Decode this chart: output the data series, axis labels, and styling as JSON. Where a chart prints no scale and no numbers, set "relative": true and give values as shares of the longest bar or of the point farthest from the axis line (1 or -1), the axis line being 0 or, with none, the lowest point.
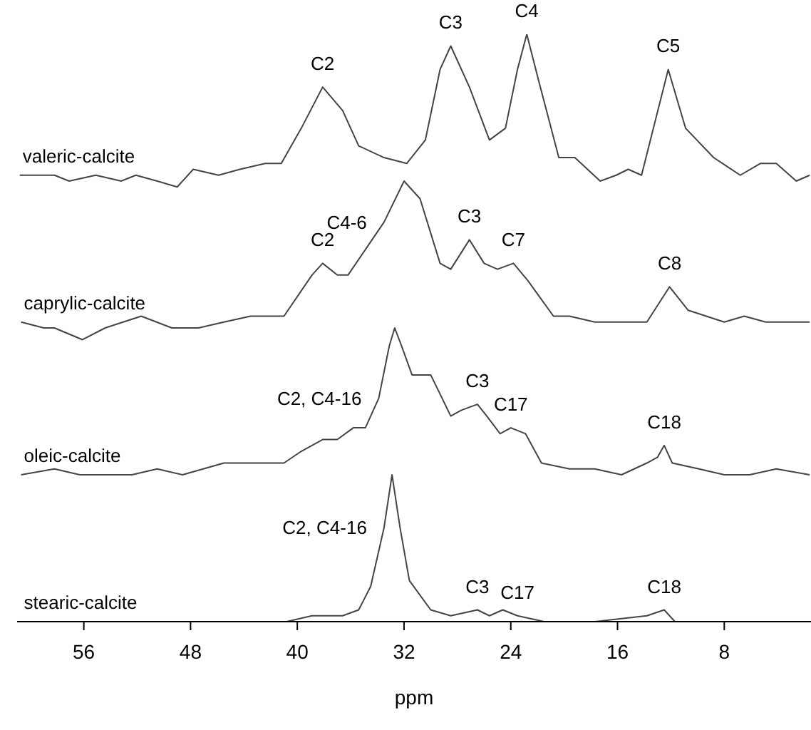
{
  "chart_data": {
    "type": "line",
    "relative": true,
    "marker": "none",
    "xlim": [
      61,
      1.5
    ],
    "xticks": [
      56,
      48,
      40,
      32,
      24,
      16,
      8
    ],
    "xlabel": "ppm",
    "series": [
      {
        "name": "valeric-calcite",
        "color": "#444444",
        "x": [
          60.8,
          58.2,
          57.1,
          55.1,
          53.2,
          52.1,
          50.5,
          49.0,
          47.8,
          45.9,
          44.3,
          42.4,
          41.2,
          39.7,
          38.1,
          36.6,
          35.4,
          33.5,
          31.8,
          30.4,
          29.3,
          28.5,
          27.1,
          25.6,
          24.4,
          23.5,
          22.8,
          21.9,
          20.4,
          19.2,
          17.3,
          16.1,
          15.2,
          14.2,
          13.2,
          12.2,
          10.9,
          8.8,
          6.8,
          5.3,
          4.1,
          2.6,
          1.6
        ],
        "values": [
          0.76,
          0.76,
          0.75,
          0.76,
          0.75,
          0.76,
          0.75,
          0.74,
          0.77,
          0.76,
          0.77,
          0.78,
          0.78,
          0.84,
          0.91,
          0.87,
          0.81,
          0.79,
          0.78,
          0.82,
          0.94,
          0.98,
          0.91,
          0.82,
          0.84,
          0.94,
          1.0,
          0.92,
          0.79,
          0.79,
          0.75,
          0.76,
          0.77,
          0.76,
          0.85,
          0.94,
          0.84,
          0.79,
          0.76,
          0.78,
          0.78,
          0.75,
          0.76
        ]
      },
      {
        "name": "caprylic-calcite",
        "color": "#444444",
        "x": [
          60.7,
          59.0,
          58.2,
          56.1,
          54.4,
          51.7,
          49.4,
          47.4,
          45.5,
          43.5,
          42.0,
          41.0,
          38.9,
          38.1,
          37.0,
          36.2,
          34.7,
          33.5,
          32.0,
          30.8,
          29.3,
          28.5,
          27.1,
          26.0,
          25.0,
          23.8,
          22.7,
          20.8,
          19.6,
          17.7,
          15.7,
          13.8,
          12.1,
          10.7,
          8.0,
          6.5,
          4.9,
          3.0,
          1.6
        ],
        "values": [
          0.51,
          0.5,
          0.5,
          0.48,
          0.5,
          0.52,
          0.5,
          0.5,
          0.51,
          0.52,
          0.52,
          0.52,
          0.59,
          0.61,
          0.59,
          0.59,
          0.64,
          0.68,
          0.75,
          0.72,
          0.61,
          0.6,
          0.65,
          0.61,
          0.6,
          0.61,
          0.58,
          0.52,
          0.52,
          0.51,
          0.51,
          0.51,
          0.57,
          0.53,
          0.51,
          0.52,
          0.51,
          0.51,
          0.51
        ]
      },
      {
        "name": "oleic-calcite",
        "color": "#444444",
        "x": [
          60.7,
          58.2,
          56.3,
          54.4,
          52.4,
          50.5,
          48.6,
          45.5,
          42.8,
          41.0,
          39.7,
          38.1,
          37.0,
          35.8,
          34.9,
          33.9,
          33.1,
          32.7,
          32.2,
          31.4,
          30.0,
          28.5,
          27.7,
          26.5,
          25.8,
          24.8,
          24.0,
          22.9,
          21.7,
          19.6,
          17.7,
          15.7,
          13.8,
          13.0,
          12.5,
          11.9,
          9.9,
          8.0,
          6.1,
          4.1,
          1.6
        ],
        "values": [
          0.25,
          0.26,
          0.25,
          0.25,
          0.25,
          0.26,
          0.25,
          0.27,
          0.27,
          0.27,
          0.29,
          0.31,
          0.31,
          0.33,
          0.33,
          0.38,
          0.47,
          0.5,
          0.47,
          0.42,
          0.42,
          0.35,
          0.36,
          0.37,
          0.35,
          0.32,
          0.33,
          0.32,
          0.27,
          0.26,
          0.26,
          0.25,
          0.27,
          0.28,
          0.3,
          0.27,
          0.26,
          0.25,
          0.25,
          0.26,
          0.25
        ]
      },
      {
        "name": "stearic-calcite",
        "color": "#444444",
        "x": [
          60.7,
          54.4,
          46.6,
          40.8,
          38.9,
          36.6,
          35.4,
          34.5,
          33.5,
          32.9,
          32.3,
          31.6,
          30.0,
          28.5,
          26.5,
          25.6,
          24.6,
          23.5,
          21.5,
          17.7,
          13.8,
          12.5,
          11.7,
          8.0,
          1.6
        ],
        "values": [
          0.0,
          0.0,
          0.0,
          0.0,
          0.01,
          0.01,
          0.02,
          0.06,
          0.16,
          0.25,
          0.16,
          0.07,
          0.02,
          0.01,
          0.02,
          0.01,
          0.02,
          0.01,
          0.0,
          0.0,
          0.01,
          0.02,
          0.0,
          0.0,
          0.0
        ]
      }
    ],
    "annotations": [
      {
        "text": "C2",
        "x": 38.1,
        "y": 0.91
      },
      {
        "text": "C3",
        "x": 28.5,
        "y": 0.98
      },
      {
        "text": "C4",
        "x": 22.8,
        "y": 1.0
      },
      {
        "text": "C5",
        "x": 12.2,
        "y": 0.94
      },
      {
        "text": "C2",
        "x": 38.1,
        "y": 0.61
      },
      {
        "text": "C4-6",
        "x": 33.5,
        "y": 0.68
      },
      {
        "text": "C3",
        "x": 27.1,
        "y": 0.65
      },
      {
        "text": "C7",
        "x": 23.8,
        "y": 0.61
      },
      {
        "text": "C8",
        "x": 12.1,
        "y": 0.57
      },
      {
        "text": "C2, C4-16",
        "x": 33.9,
        "y": 0.38
      },
      {
        "text": "C3",
        "x": 26.5,
        "y": 0.37
      },
      {
        "text": "C17",
        "x": 24.0,
        "y": 0.33
      },
      {
        "text": "C18",
        "x": 12.5,
        "y": 0.3
      },
      {
        "text": "C2, C4-16",
        "x": 33.5,
        "y": 0.16
      },
      {
        "text": "C3",
        "x": 26.5,
        "y": 0.02
      },
      {
        "text": "C17",
        "x": 23.5,
        "y": 0.01
      },
      {
        "text": "C18",
        "x": 12.5,
        "y": 0.02
      }
    ]
  }
}
